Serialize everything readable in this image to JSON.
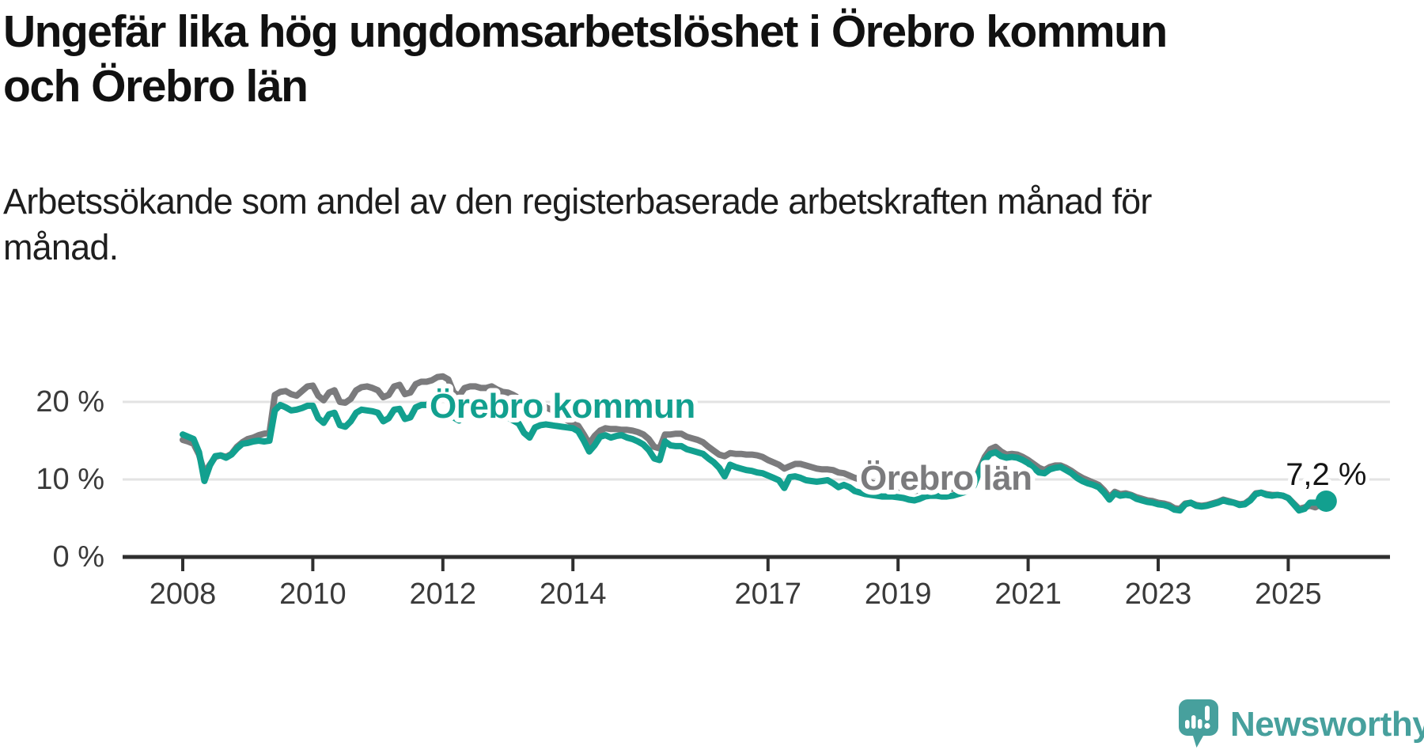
{
  "title": {
    "lines": [
      "Ungefär lika hög ungdomsarbetslöshet i Örebro kommun",
      "och Örebro län"
    ]
  },
  "subtitle": {
    "lines": [
      "Arbetssökande som andel av den registerbaserade arbetskraften månad för",
      "månad."
    ]
  },
  "colors": {
    "teal": "#12A08F",
    "gray": "#7B7B7D",
    "gridline": "#E3E3E3",
    "axis": "#2F2F2F",
    "tick_text": "#3A3A3A",
    "end_label_text": "#151515",
    "logo_teal": "#47A09D",
    "background": "#FFFFFF"
  },
  "chart_data": {
    "type": "line",
    "unit": "%",
    "frequency": "monthly",
    "start": "2008-01",
    "end": "2025-08",
    "grid": "horizontal",
    "legend_position": "inline-labels",
    "x_ticks": [
      2008,
      2010,
      2012,
      2014,
      2017,
      2019,
      2021,
      2023,
      2025
    ],
    "x_tick_labels": [
      "2008",
      "2010",
      "2012",
      "2014",
      "2017",
      "2019",
      "2021",
      "2023",
      "2025"
    ],
    "y_ticks": [
      0,
      10,
      20
    ],
    "y_tick_labels": [
      "0 %",
      "10 %",
      "20 %"
    ],
    "ylim": [
      0,
      32
    ],
    "xlim_years": [
      2007.1,
      2026.5
    ],
    "end_label": {
      "text": "7,2 %",
      "series": "Örebro kommun",
      "value": 7.2
    },
    "series": [
      {
        "name": "Örebro kommun",
        "slug": "orebro-kommun",
        "color": "#12A08F",
        "values": [
          15.8,
          15.5,
          15.2,
          13.5,
          9.8,
          11.8,
          13.0,
          13.1,
          12.8,
          13.2,
          14.0,
          14.6,
          14.7,
          14.9,
          15.0,
          14.9,
          15.0,
          18.9,
          19.6,
          19.3,
          18.9,
          19.0,
          19.2,
          19.5,
          19.5,
          17.9,
          17.3,
          18.4,
          18.6,
          17.0,
          16.8,
          17.5,
          18.6,
          19.0,
          18.9,
          18.8,
          18.6,
          17.5,
          17.9,
          19.0,
          19.1,
          17.8,
          18.0,
          19.3,
          19.6,
          19.6,
          20.0,
          20.4,
          20.5,
          20.3,
          18.0,
          17.6,
          19.0,
          19.4,
          19.3,
          19.0,
          18.9,
          18.8,
          18.7,
          18.3,
          18.0,
          17.6,
          17.2,
          16.0,
          15.4,
          16.7,
          17.0,
          17.1,
          17.0,
          16.9,
          16.8,
          16.7,
          16.6,
          16.2,
          15.0,
          13.6,
          14.4,
          15.5,
          15.7,
          15.4,
          15.6,
          15.7,
          15.4,
          15.2,
          14.9,
          14.5,
          13.8,
          12.7,
          12.5,
          14.9,
          14.4,
          14.3,
          14.3,
          13.9,
          13.7,
          13.5,
          13.3,
          12.7,
          12.2,
          11.5,
          10.4,
          11.9,
          11.6,
          11.4,
          11.2,
          11.1,
          10.9,
          10.8,
          10.5,
          10.2,
          9.9,
          8.9,
          10.3,
          10.4,
          10.2,
          9.9,
          9.8,
          9.7,
          9.8,
          9.9,
          9.5,
          9.0,
          9.3,
          9.0,
          8.5,
          8.3,
          8.1,
          8.0,
          7.9,
          7.8,
          7.8,
          7.8,
          7.7,
          7.6,
          7.4,
          7.3,
          7.5,
          7.8,
          7.9,
          7.9,
          7.8,
          7.8,
          7.9,
          8.1,
          8.3,
          8.6,
          9.2,
          11.0,
          12.5,
          13.3,
          13.5,
          13.0,
          12.8,
          12.9,
          12.8,
          12.5,
          12.1,
          11.5,
          10.9,
          10.8,
          11.3,
          11.5,
          11.6,
          11.2,
          10.8,
          10.2,
          9.8,
          9.5,
          9.3,
          9.0,
          8.3,
          7.4,
          8.2,
          7.9,
          8.0,
          7.9,
          7.5,
          7.3,
          7.1,
          7.0,
          6.8,
          6.7,
          6.5,
          6.1,
          6.0,
          6.8,
          7.0,
          6.6,
          6.5,
          6.6,
          6.8,
          7.0,
          7.3,
          7.1,
          7.0,
          6.7,
          6.8,
          7.3,
          8.1,
          8.3,
          8.0,
          7.9,
          8.0,
          7.9,
          7.6,
          6.8,
          6.0,
          6.2,
          7.0,
          7.0,
          7.0,
          7.2
        ]
      },
      {
        "name": "Örebro län",
        "slug": "orebro-lan",
        "color": "#7B7B7D",
        "values": [
          15.1,
          14.9,
          14.6,
          13.2,
          10.8,
          11.9,
          12.9,
          13.1,
          12.9,
          13.3,
          14.2,
          14.8,
          15.2,
          15.4,
          15.7,
          15.9,
          16.0,
          20.9,
          21.3,
          21.4,
          21.0,
          20.8,
          21.4,
          22.0,
          22.1,
          20.8,
          20.2,
          21.2,
          21.5,
          20.0,
          19.9,
          20.4,
          21.5,
          21.9,
          22.0,
          21.8,
          21.5,
          20.6,
          20.9,
          22.0,
          22.2,
          21.0,
          21.2,
          22.3,
          22.6,
          22.6,
          22.8,
          23.2,
          23.3,
          22.9,
          21.2,
          20.8,
          21.8,
          22.0,
          22.0,
          21.8,
          21.8,
          22.0,
          21.6,
          21.3,
          21.2,
          20.9,
          20.5,
          19.6,
          19.0,
          19.6,
          19.5,
          19.3,
          19.0,
          18.6,
          18.2,
          17.6,
          17.3,
          16.9,
          15.8,
          14.6,
          15.6,
          16.3,
          16.6,
          16.5,
          16.5,
          16.4,
          16.4,
          16.3,
          16.1,
          15.8,
          15.2,
          14.2,
          14.0,
          15.8,
          15.8,
          15.9,
          15.9,
          15.5,
          15.3,
          15.1,
          14.8,
          14.2,
          13.7,
          13.2,
          13.0,
          13.4,
          13.3,
          13.3,
          13.2,
          13.2,
          13.1,
          12.9,
          12.5,
          12.2,
          11.9,
          11.4,
          11.7,
          12.0,
          12.0,
          11.8,
          11.6,
          11.4,
          11.3,
          11.3,
          11.2,
          10.9,
          10.8,
          10.5,
          10.2,
          10.0,
          9.8,
          9.6,
          9.4,
          9.3,
          9.2,
          9.1,
          9.0,
          8.8,
          8.6,
          8.5,
          8.6,
          8.8,
          8.9,
          8.9,
          8.8,
          8.8,
          8.8,
          8.9,
          9.0,
          9.1,
          9.5,
          11.3,
          12.9,
          13.9,
          14.2,
          13.6,
          13.2,
          13.3,
          13.2,
          12.9,
          12.5,
          12.0,
          11.5,
          11.2,
          11.6,
          11.8,
          11.8,
          11.5,
          11.1,
          10.6,
          10.2,
          9.9,
          9.6,
          9.3,
          8.6,
          7.7,
          8.4,
          8.1,
          8.2,
          8.0,
          7.7,
          7.5,
          7.3,
          7.2,
          7.0,
          6.9,
          6.7,
          6.3,
          6.2,
          6.9,
          7.0,
          6.7,
          6.6,
          6.7,
          6.9,
          7.1,
          7.4,
          7.2,
          7.0,
          6.8,
          6.9,
          7.4,
          8.2,
          8.3,
          8.1,
          8.0,
          8.0,
          7.9,
          7.6,
          6.9,
          6.2,
          6.4,
          6.6,
          6.4,
          6.8,
          7.0
        ]
      }
    ]
  },
  "logo": {
    "text": "Newsworthy",
    "icon": "newsworthy-speech-bubble-bar-chart-icon"
  }
}
